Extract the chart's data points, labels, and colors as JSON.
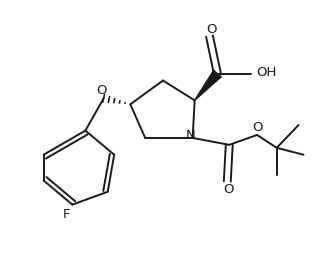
{
  "bg_color": "#ffffff",
  "line_color": "#1a1a1a",
  "line_width": 1.4,
  "figsize": [
    3.22,
    2.6
  ],
  "dpi": 100,
  "xlim": [
    0,
    322
  ],
  "ylim": [
    0,
    260
  ]
}
